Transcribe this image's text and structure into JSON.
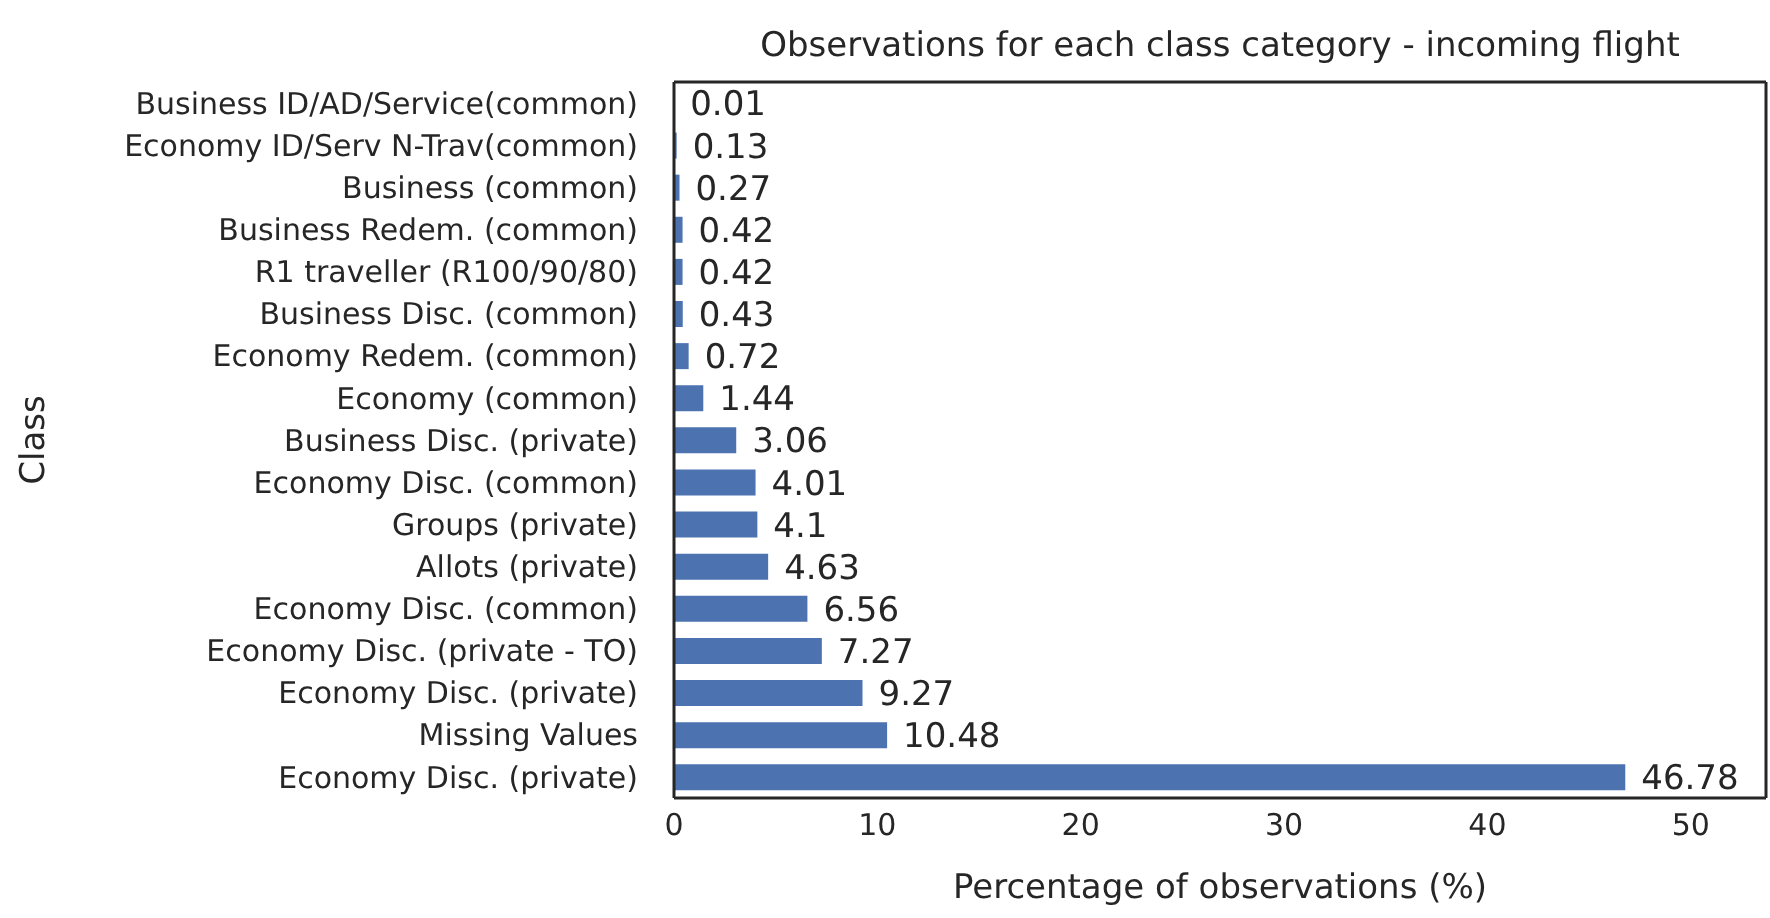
{
  "chart_data": {
    "type": "bar",
    "orientation": "horizontal",
    "title": "Observations for each class category - incoming flight",
    "xlabel": "Percentage of observations (%)",
    "ylabel": "Class",
    "categories": [
      "Business ID/AD/Service(common)",
      "Economy ID/Serv N-Trav(common)",
      "Business (common)",
      "Business Redem. (common)",
      "R1 traveller (R100/90/80)",
      "Business Disc. (common)",
      "Economy Redem. (common)",
      "Economy (common)",
      "Business Disc. (private)",
      "Economy Disc. (common)",
      "Groups (private)",
      "Allots (private)",
      "Economy Disc. (common)",
      "Economy Disc. (private - TO)",
      "Economy Disc. (private)",
      "Missing Values",
      "Economy Disc. (private)"
    ],
    "values": [
      0.01,
      0.13,
      0.27,
      0.42,
      0.42,
      0.43,
      0.72,
      1.44,
      3.06,
      4.01,
      4.1,
      4.63,
      6.56,
      7.27,
      9.27,
      10.48,
      46.78
    ],
    "color": "#4c72b0",
    "xlim": [
      0,
      53.7
    ],
    "xticks": [
      0,
      10,
      20,
      30,
      40,
      50
    ],
    "data_labels": true,
    "grid": false
  }
}
